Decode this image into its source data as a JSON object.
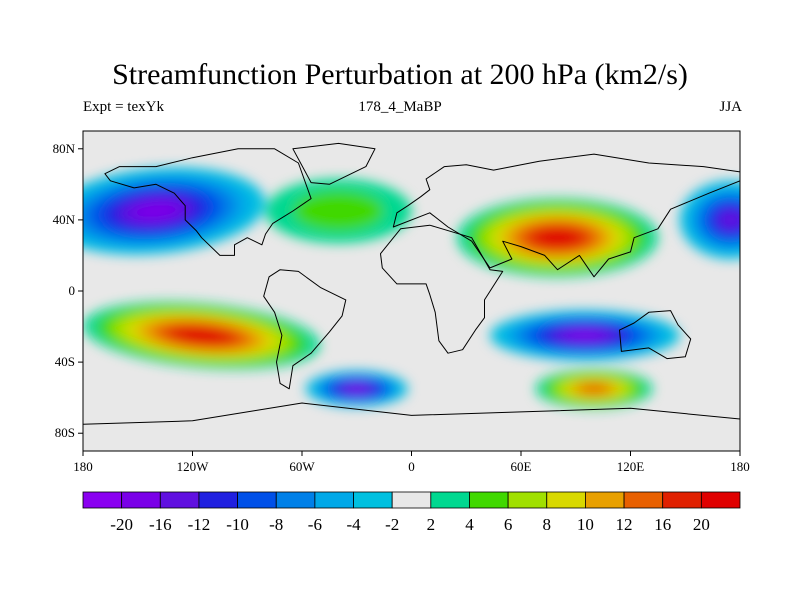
{
  "title": "Streamfunction Perturbation at 200 hPa (km2/s)",
  "subtitle_left": "Expt = texYk",
  "subtitle_center": "178_4_MaBP",
  "subtitle_right": "JJA",
  "map": {
    "lon_range": [
      -180,
      180
    ],
    "lat_range": [
      -90,
      90
    ],
    "background_color": "#e8e8e8",
    "coastline_color": "#000000",
    "lon_ticks": [
      {
        "value": -180,
        "label": "180"
      },
      {
        "value": -120,
        "label": "120W"
      },
      {
        "value": -60,
        "label": "60W"
      },
      {
        "value": 0,
        "label": "0"
      },
      {
        "value": 60,
        "label": "60E"
      },
      {
        "value": 120,
        "label": "120E"
      },
      {
        "value": 180,
        "label": "180"
      }
    ],
    "lat_ticks": [
      {
        "value": 80,
        "label": "80N"
      },
      {
        "value": 40,
        "label": "40N"
      },
      {
        "value": 0,
        "label": "0"
      },
      {
        "value": -40,
        "label": "40S"
      },
      {
        "value": -80,
        "label": "80S"
      }
    ]
  },
  "colorbar": {
    "colors": [
      "#8a00f0",
      "#7a00e8",
      "#6010e0",
      "#2020e0",
      "#0050e8",
      "#0080e8",
      "#00a8e8",
      "#00c0e0",
      "#e8e8e8",
      "#00d890",
      "#40d800",
      "#a0e000",
      "#d8d800",
      "#e8a000",
      "#e86000",
      "#e02000",
      "#e00000"
    ],
    "labels": [
      "-20",
      "-16",
      "-12",
      "-10",
      "-8",
      "-6",
      "-4",
      "-2",
      "2",
      "4",
      "6",
      "8",
      "10",
      "12",
      "16",
      "20"
    ]
  },
  "chart_data": {
    "type": "heatmap",
    "title": "Streamfunction Perturbation at 200 hPa (km2/s)",
    "variable": "Streamfunction Perturbation",
    "level": "200 hPa",
    "units": "km2/s",
    "season": "JJA",
    "experiment": "texYk",
    "time_label": "178_4_MaBP",
    "contour_levels": [
      -20,
      -16,
      -12,
      -10,
      -8,
      -6,
      -4,
      -2,
      2,
      4,
      6,
      8,
      10,
      12,
      16,
      20
    ],
    "features": [
      {
        "region": "North Pacific 45N 140W",
        "center_lon": -140,
        "center_lat": 45,
        "peak_value": -18
      },
      {
        "region": "Central Asia 30N 80E",
        "center_lon": 80,
        "center_lat": 30,
        "peak_value": 20
      },
      {
        "region": "South Pacific 25S 115W",
        "center_lon": -115,
        "center_lat": -25,
        "peak_value": 20
      },
      {
        "region": "Indian Ocean 25S 95E",
        "center_lon": 95,
        "center_lat": -25,
        "peak_value": -18
      },
      {
        "region": "South Atlantic 55S 30W",
        "center_lon": -30,
        "center_lat": -55,
        "peak_value": -18
      },
      {
        "region": "Southern Indian Ocean 55S 100E",
        "center_lon": 100,
        "center_lat": -55,
        "peak_value": 14
      },
      {
        "region": "North Atlantic 45N 40W",
        "center_lon": -40,
        "center_lat": 45,
        "peak_value": 5
      },
      {
        "region": "Western Pacific 40N 175E",
        "center_lon": 175,
        "center_lat": 40,
        "peak_value": -12
      }
    ]
  }
}
